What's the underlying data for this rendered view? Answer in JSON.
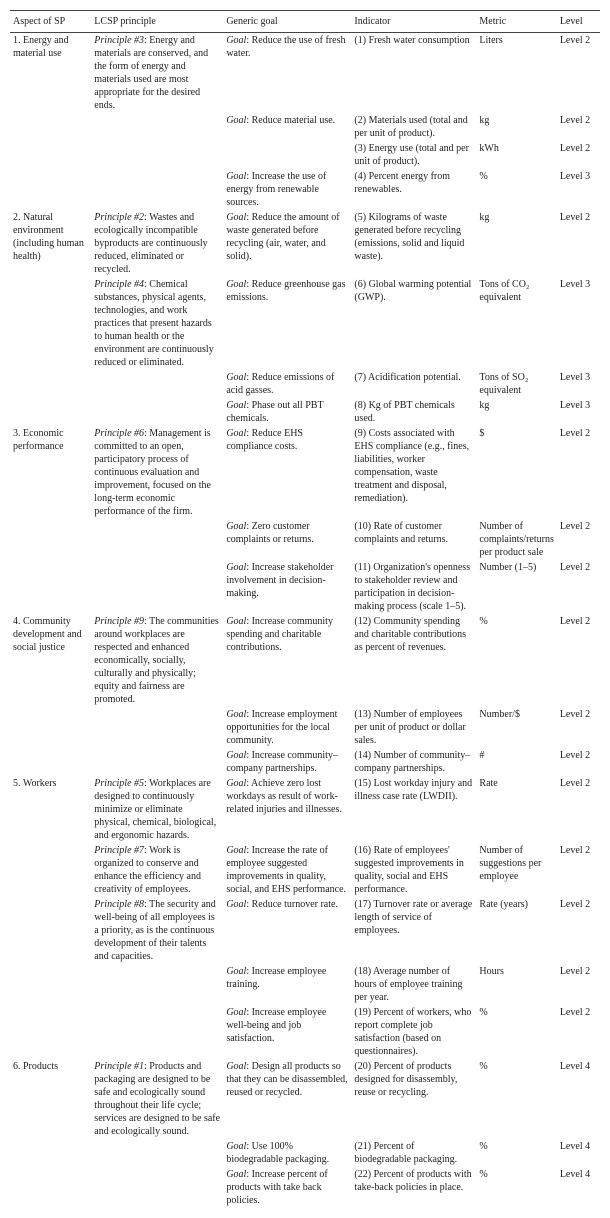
{
  "columns": [
    "Aspect of SP",
    "LCSP principle",
    "Generic goal",
    "Indicator",
    "Metric",
    "Level"
  ],
  "rows": [
    {
      "aspect": "1. Energy and material use",
      "principle": "Principle #3: Energy and materials are conserved, and the form of energy and materials used are most appropriate for the desired ends.",
      "principleItalic": "Principle #3",
      "goal": "Goal: Reduce the use of fresh water.",
      "goalItalic": "Goal",
      "indicator": "(1) Fresh water consumption",
      "metric": "Liters",
      "level": "Level 2"
    },
    {
      "aspect": "",
      "principle": "",
      "goal": "Goal: Reduce material use.",
      "goalItalic": "Goal",
      "indicator": "(2) Materials used (total and per unit of product).",
      "metric": "kg",
      "level": "Level 2"
    },
    {
      "aspect": "",
      "principle": "",
      "goal": "",
      "indicator": "(3) Energy use (total and per unit of product).",
      "metric": "kWh",
      "level": "Level 2"
    },
    {
      "aspect": "",
      "principle": "",
      "goal": "Goal: Increase the use of energy from renewable sources.",
      "goalItalic": "Goal",
      "indicator": "(4) Percent energy from renewables.",
      "metric": "%",
      "level": "Level 3"
    },
    {
      "aspect": "2. Natural environment (including human health)",
      "principle": "Principle #2: Wastes and ecologically incompatible byproducts are continuously reduced, eliminated or recycled.",
      "principleItalic": "Principle #2",
      "goal": "Goal: Reduce the amount of waste generated before recycling (air, water, and solid).",
      "goalItalic": "Goal",
      "indicator": "(5) Kilograms of waste generated before recycling (emissions, solid and liquid waste).",
      "metric": "kg",
      "level": "Level 2"
    },
    {
      "aspect": "",
      "principle": "Principle #4: Chemical substances, physical agents, technologies, and work practices that present hazards to human health or the environment are continuously reduced or eliminated.",
      "principleItalic": "Principle #4",
      "goal": "Goal: Reduce greenhouse gas emissions.",
      "goalItalic": "Goal",
      "indicator": "(6) Global warming potential (GWP).",
      "metric": "Tons of CO₂ equivalent",
      "level": "Level 3"
    },
    {
      "aspect": "",
      "principle": "",
      "goal": "Goal: Reduce emissions of acid gasses.",
      "goalItalic": "Goal",
      "indicator": "(7) Acidification potential.",
      "metric": "Tons of SO₂ equivalent",
      "level": "Level 3"
    },
    {
      "aspect": "",
      "principle": "",
      "goal": "Goal: Phase out all PBT chemicals.",
      "goalItalic": "Goal",
      "indicator": "(8) Kg of PBT chemicals used.",
      "metric": "kg",
      "level": "Level 3"
    },
    {
      "aspect": "3. Economic performance",
      "principle": "Principle #6: Management is committed to an open, participatory process of continuous evaluation and improvement, focused on the long-term economic performance of the firm.",
      "principleItalic": "Principle #6",
      "goal": "Goal: Reduce EHS compliance costs.",
      "goalItalic": "Goal",
      "indicator": "(9) Costs associated with EHS compliance (e.g., fines, liabilities, worker compensation, waste treatment and disposal, remediation).",
      "metric": "$",
      "level": "Level 2"
    },
    {
      "aspect": "",
      "principle": "",
      "goal": "Goal: Zero customer complaints or returns.",
      "goalItalic": "Goal",
      "indicator": "(10) Rate of customer complaints and returns.",
      "metric": "Number of complaints/returns per product sale",
      "level": "Level 2"
    },
    {
      "aspect": "",
      "principle": "",
      "goal": "Goal: Increase stakeholder involvement in decision-making.",
      "goalItalic": "Goal",
      "indicator": "(11) Organization's openness to stakeholder review and participation in decision-making process (scale 1–5).",
      "metric": "Number (1–5)",
      "level": "Level 2"
    },
    {
      "aspect": "4. Community development and social justice",
      "principle": "Principle #9: The communities around workplaces are respected and enhanced economically, socially, culturally and physically; equity and fairness are promoted.",
      "principleItalic": "Principle #9",
      "goal": "Goal: Increase community spending and charitable contributions.",
      "goalItalic": "Goal",
      "indicator": "(12) Community spending and charitable contributions as percent of revenues.",
      "metric": "%",
      "level": "Level 2"
    },
    {
      "aspect": "",
      "principle": "",
      "goal": "Goal: Increase employment opportunities for the local community.",
      "goalItalic": "Goal",
      "indicator": "(13) Number of employees per unit of product or dollar sales.",
      "metric": "Number/$",
      "level": "Level 2"
    },
    {
      "aspect": "",
      "principle": "",
      "goal": "Goal: Increase community–company partnerships.",
      "goalItalic": "Goal",
      "indicator": "(14) Number of community–company partnerships.",
      "metric": "#",
      "level": "Level 2"
    },
    {
      "aspect": "5. Workers",
      "principle": "Principle #5: Workplaces are designed to continuously minimize or eliminate physical, chemical, biological, and ergonomic hazards.",
      "principleItalic": "Principle #5",
      "goal": "Goal: Achieve zero lost workdays as result of work-related injuries and illnesses.",
      "goalItalic": "Goal",
      "indicator": "(15) Lost workday injury and illness case rate (LWDII).",
      "metric": "Rate",
      "level": "Level 2"
    },
    {
      "aspect": "",
      "principle": "Principle #7: Work is organized to conserve and enhance the efficiency and creativity of employees.",
      "principleItalic": "Principle #7",
      "goal": "Goal: Increase the rate of employee suggested improvements in quality, social, and EHS performance.",
      "goalItalic": "Goal",
      "indicator": "(16) Rate of employees' suggested improvements in quality, social and EHS performance.",
      "metric": "Number of suggestions per employee",
      "level": "Level 2"
    },
    {
      "aspect": "",
      "principle": "Principle #8: The security and well-being of all employees is a priority, as is the continuous development of their talents and capacities.",
      "principleItalic": "Principle #8",
      "goal": "Goal: Reduce turnover rate.",
      "goalItalic": "Goal",
      "indicator": "(17) Turnover rate or average length of service of employees.",
      "metric": "Rate (years)",
      "level": "Level 2"
    },
    {
      "aspect": "",
      "principle": "",
      "goal": "Goal: Increase employee training.",
      "goalItalic": "Goal",
      "indicator": "(18) Average number of hours of employee training per year.",
      "metric": "Hours",
      "level": "Level 2"
    },
    {
      "aspect": "",
      "principle": "",
      "goal": "Goal: Increase employee well-being and job satisfaction.",
      "goalItalic": "Goal",
      "indicator": "(19) Percent of workers, who report complete job satisfaction (based on questionnaires).",
      "metric": "%",
      "level": "Level 2"
    },
    {
      "aspect": "6. Products",
      "principle": "Principle #1: Products and packaging are designed to be safe and ecologically sound throughout their life cycle; services are designed to be safe and ecologically sound.",
      "principleItalic": "Principle #1",
      "goal": "Goal: Design all products so that they can be disassembled, reused or recycled.",
      "goalItalic": "Goal",
      "indicator": "(20) Percent of products designed for disassembly, reuse or recycling.",
      "metric": "%",
      "level": "Level 4"
    },
    {
      "aspect": "",
      "principle": "",
      "goal": "Goal: Use 100% biodegradable packaging.",
      "goalItalic": "Goal",
      "indicator": "(21) Percent of biodegradable packaging.",
      "metric": "%",
      "level": "Level 4"
    },
    {
      "aspect": "",
      "principle": "",
      "goal": "Goal: Increase percent of products with take back policies.",
      "goalItalic": "Goal",
      "indicator": "(22) Percent of products with take-back policies in place.",
      "metric": "%",
      "level": "Level 4"
    }
  ]
}
